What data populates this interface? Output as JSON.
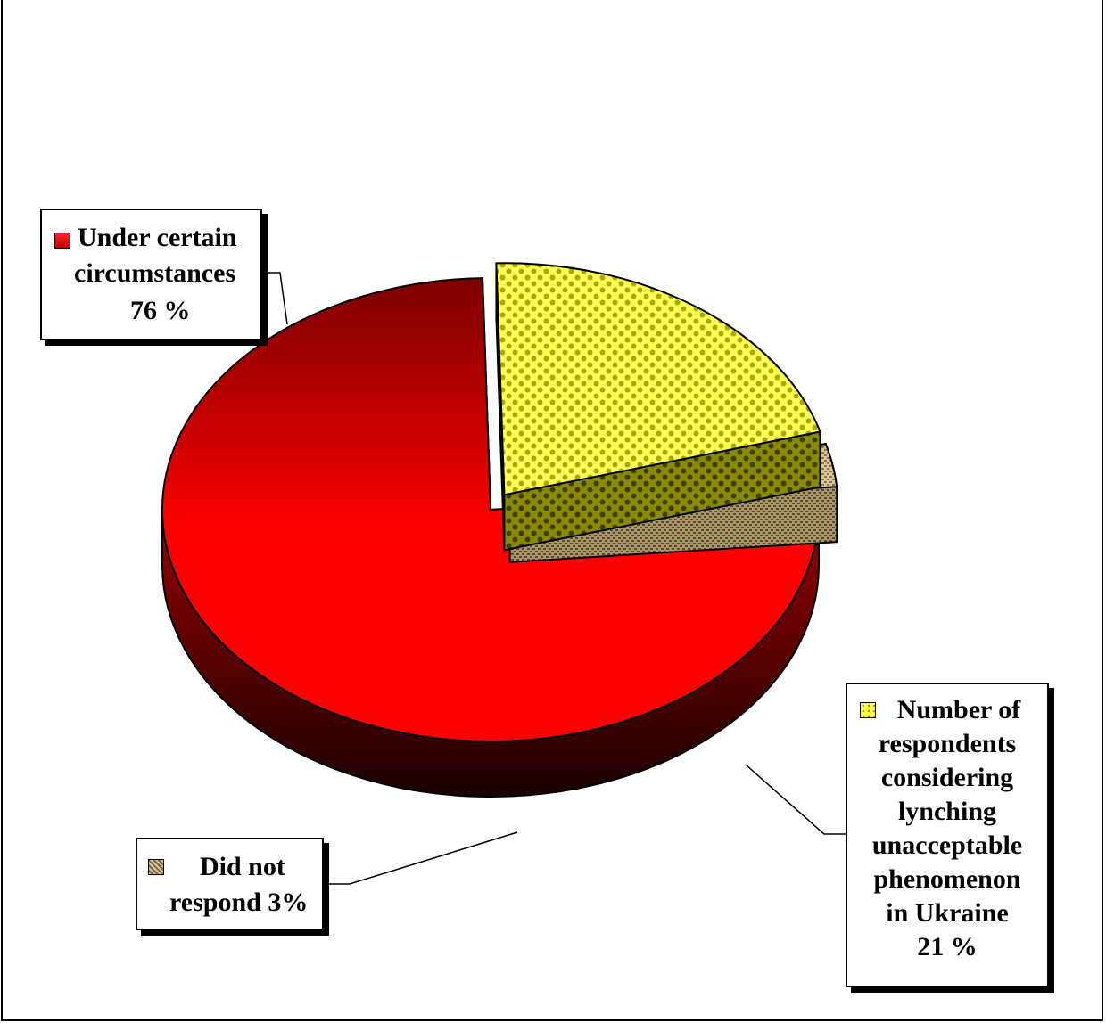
{
  "chart_data": {
    "type": "pie",
    "title": "",
    "style": "3d-exploded",
    "slices": [
      {
        "label_lines": [
          "Under certain",
          "circumstances",
          "76 %"
        ],
        "value": 76,
        "color": "#ff0000",
        "dark_color": "#6e0000",
        "pattern": "gradient"
      },
      {
        "label_lines": [
          "Number of",
          "respondents",
          "considering",
          "lynching",
          "unacceptable",
          "phenomenon",
          "in Ukraine",
          "21 %"
        ],
        "value": 21,
        "color": "#ffff33",
        "dark_color": "#7a7a00",
        "pattern": "checker"
      },
      {
        "label_lines": [
          "Did not",
          "respond 3%"
        ],
        "value": 3,
        "color": "#d8c8a0",
        "dark_color": "#8a7a5a",
        "pattern": "burlap"
      }
    ]
  }
}
